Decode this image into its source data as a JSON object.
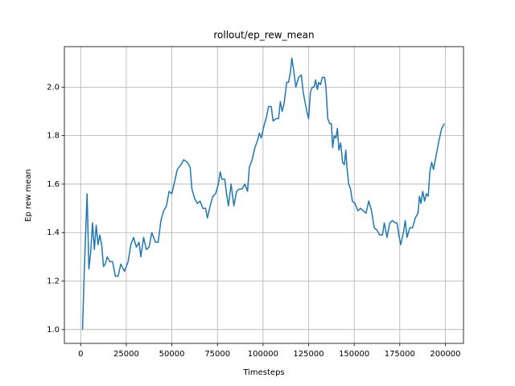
{
  "chart_data": {
    "type": "line",
    "title": "rollout/ep_rew_mean",
    "x_label": "Timesteps",
    "y_label": "Ep rew mean",
    "grid": true,
    "xlim": [
      -8950,
      209950
    ],
    "ylim": [
      0.943,
      2.167
    ],
    "xticks": [
      0,
      25000,
      50000,
      75000,
      100000,
      125000,
      150000,
      175000,
      200000
    ],
    "yticks": [
      {
        "value": 1.0,
        "label": "1.0"
      },
      {
        "value": 1.2,
        "label": "1.2"
      },
      {
        "value": 1.4,
        "label": "1.4"
      },
      {
        "value": 1.6,
        "label": "1.6"
      },
      {
        "value": 1.8,
        "label": "1.8"
      },
      {
        "value": 2.0,
        "label": "2.0"
      }
    ],
    "x": [
      1000,
      2000,
      3500,
      4500,
      5500,
      6500,
      7500,
      8500,
      9500,
      10500,
      11500,
      12500,
      13500,
      14500,
      16000,
      17500,
      19000,
      20500,
      22000,
      24000,
      26000,
      27500,
      29000,
      30500,
      32000,
      33000,
      34500,
      36000,
      37500,
      39000,
      41000,
      42500,
      44000,
      45500,
      47000,
      48500,
      50000,
      51500,
      53000,
      55000,
      56500,
      58500,
      60000,
      61000,
      62500,
      64000,
      65500,
      67000,
      68500,
      69500,
      71000,
      72500,
      74000,
      75500,
      76500,
      77500,
      79000,
      80000,
      81000,
      82500,
      84000,
      85500,
      87000,
      88500,
      90000,
      91500,
      92500,
      94000,
      95500,
      97000,
      98000,
      99000,
      100500,
      102000,
      103000,
      104500,
      105500,
      107000,
      108500,
      109500,
      110500,
      111500,
      113000,
      114000,
      115000,
      115800,
      116800,
      118000,
      119500,
      121000,
      122000,
      123000,
      124000,
      125000,
      126000,
      127000,
      128000,
      128800,
      129800,
      130500,
      131500,
      132500,
      133800,
      134500,
      135500,
      136500,
      137500,
      138200,
      139000,
      140000,
      140800,
      141600,
      142600,
      143600,
      144600,
      145400,
      146000,
      147000,
      148000,
      149000,
      150500,
      152000,
      153500,
      155000,
      156500,
      158000,
      159500,
      161000,
      162500,
      164000,
      165500,
      166500,
      168000,
      169500,
      171000,
      172500,
      173500,
      174500,
      175500,
      177000,
      178000,
      179000,
      180500,
      182000,
      183500,
      185000,
      185800,
      186600,
      187600,
      188600,
      189600,
      190600,
      191500,
      192500,
      193500,
      195000,
      196500,
      198000,
      199500
    ],
    "series": [
      {
        "name": "ep_rew_mean",
        "color": "#1f77b4",
        "values": [
          1.0,
          1.25,
          1.56,
          1.25,
          1.32,
          1.44,
          1.33,
          1.43,
          1.35,
          1.39,
          1.35,
          1.26,
          1.27,
          1.3,
          1.28,
          1.28,
          1.22,
          1.22,
          1.27,
          1.24,
          1.28,
          1.35,
          1.38,
          1.34,
          1.36,
          1.3,
          1.38,
          1.33,
          1.34,
          1.4,
          1.36,
          1.36,
          1.45,
          1.49,
          1.51,
          1.57,
          1.56,
          1.61,
          1.66,
          1.68,
          1.7,
          1.69,
          1.67,
          1.58,
          1.54,
          1.52,
          1.53,
          1.5,
          1.5,
          1.46,
          1.51,
          1.55,
          1.56,
          1.6,
          1.65,
          1.62,
          1.62,
          1.56,
          1.51,
          1.6,
          1.51,
          1.57,
          1.58,
          1.58,
          1.6,
          1.57,
          1.67,
          1.7,
          1.75,
          1.78,
          1.81,
          1.79,
          1.84,
          1.88,
          1.92,
          1.92,
          1.86,
          1.87,
          1.87,
          1.94,
          1.9,
          1.93,
          2.02,
          2.02,
          2.06,
          2.12,
          2.07,
          2.0,
          2.04,
          2.05,
          1.98,
          1.94,
          1.9,
          1.87,
          1.98,
          2.0,
          2.0,
          2.03,
          1.99,
          2.02,
          2.01,
          2.04,
          2.04,
          2.0,
          1.87,
          1.85,
          1.85,
          1.75,
          1.8,
          1.79,
          1.83,
          1.74,
          1.77,
          1.69,
          1.68,
          1.74,
          1.67,
          1.6,
          1.58,
          1.53,
          1.52,
          1.49,
          1.5,
          1.49,
          1.48,
          1.53,
          1.49,
          1.42,
          1.41,
          1.39,
          1.39,
          1.44,
          1.38,
          1.44,
          1.45,
          1.44,
          1.44,
          1.39,
          1.35,
          1.4,
          1.45,
          1.38,
          1.42,
          1.42,
          1.46,
          1.48,
          1.55,
          1.52,
          1.57,
          1.53,
          1.56,
          1.55,
          1.65,
          1.69,
          1.66,
          1.72,
          1.78,
          1.83,
          1.85
        ]
      }
    ]
  }
}
